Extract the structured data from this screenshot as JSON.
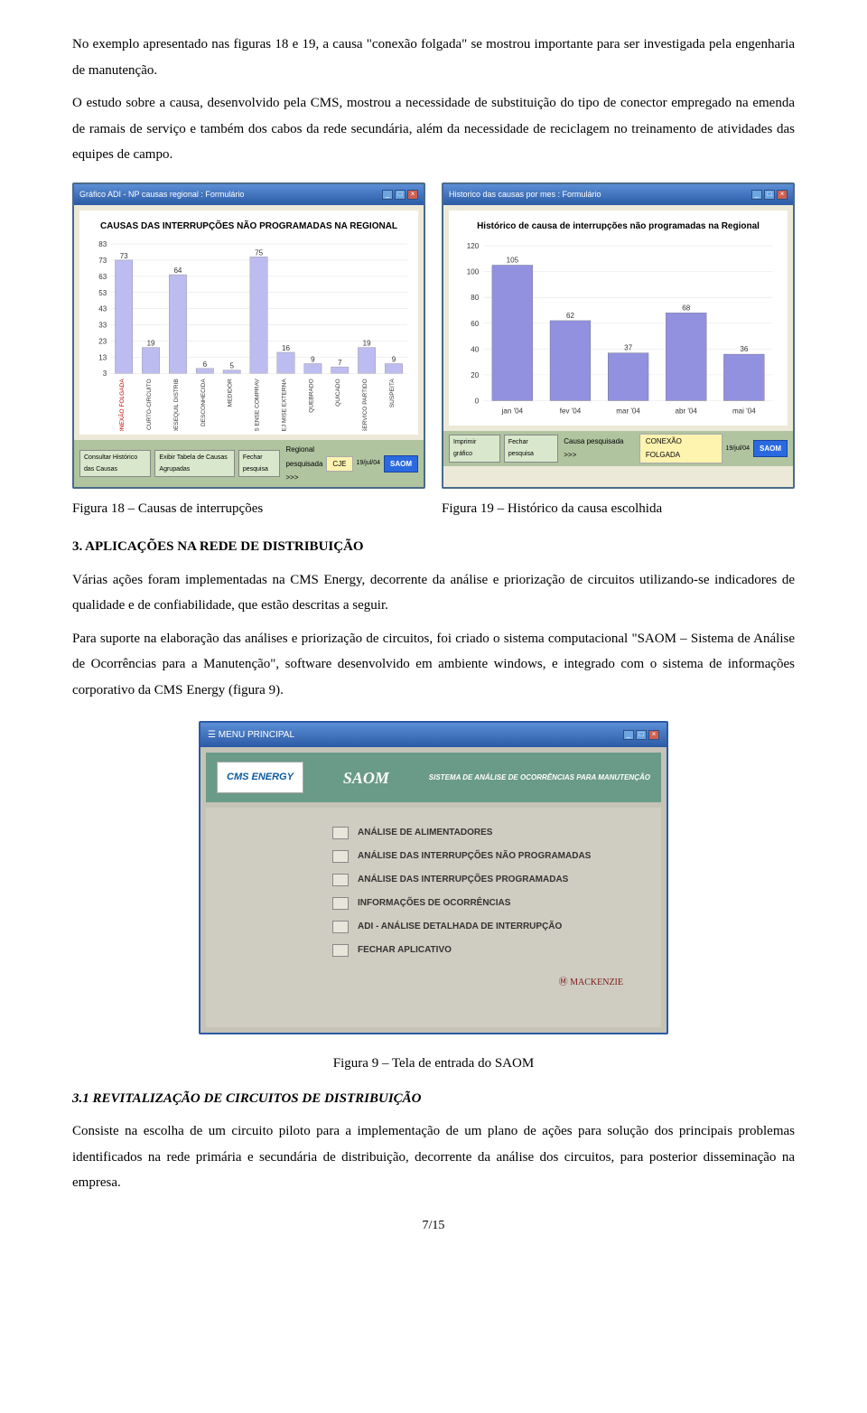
{
  "para1": "No exemplo apresentado nas figuras 18 e 19, a causa \"conexão folgada\" se mostrou importante para ser investigada pela engenharia de manutenção.",
  "para2": "O estudo sobre a causa, desenvolvido pela CMS, mostrou a necessidade de substituição do tipo de conector empregado na emenda de ramais de serviço e também dos cabos da rede secundária, além da necessidade de reciclagem no treinamento de atividades das equipes de campo.",
  "fig18": {
    "win_title": "Gráfico ADI - NP causas regional : Formulário",
    "chart_title": "CAUSAS DAS INTERRUPÇÕES NÃO PROGRAMADAS NA REGIONAL",
    "y_max": 83,
    "y_ticks": [
      83,
      73,
      63,
      53,
      43,
      33,
      23,
      13,
      3
    ],
    "categories": [
      "CONEXÃO FOLGADA",
      "CURTO-CIRCUITO",
      "DESEQUIL DISTRIB",
      "DESCONHECIDA",
      "MEDIDOR",
      "OUTROS ENSE COMPRAV",
      "PLANEJ MISE EXTERNA",
      "QUEBRADO",
      "QUICADO",
      "RPI SERVICO PARTIDO",
      "SUSPEITA"
    ],
    "values": [
      73,
      19,
      64,
      6,
      5,
      75,
      16,
      9,
      7,
      19,
      9
    ],
    "bar_color": "#bdbcf0",
    "label_color": "#c00000",
    "footer_labels": [
      "Consultar Histórico das Causas",
      "Exibir Tabela de Causas Agrupadas",
      "Fechar pesquisa"
    ],
    "footer_regional": "Regional pesquisada >>>",
    "cje": "CJE",
    "saom": "SAOM",
    "date": "19/jul/04"
  },
  "fig19": {
    "win_title": "Historico das causas por mes : Formulário",
    "chart_title": "Histórico de causa de interrupções não programadas na Regional",
    "y_max": 120,
    "y_ticks": [
      0,
      20,
      40,
      60,
      80,
      100,
      120
    ],
    "categories": [
      "jan '04",
      "fev '04",
      "mar '04",
      "abr '04",
      "mai '04"
    ],
    "values": [
      105,
      62,
      37,
      68,
      36
    ],
    "bar_color": "#9191e0",
    "footer_labels": [
      "Imprimir gráfico",
      "Fechar pesquisa"
    ],
    "footer_causa": "Causa pesquisada >>>",
    "conexao": "CONEXÃO FOLGADA",
    "saom": "SAOM",
    "date": "19/jul/04"
  },
  "cap18": "Figura 18 – Causas de interrupções",
  "cap19": "Figura 19 – Histórico da causa escolhida",
  "section3": "3.  APLICAÇÕES NA REDE DE DISTRIBUIÇÃO",
  "para3": "Várias ações foram implementadas na CMS Energy, decorrente da análise e priorização de circuitos utilizando-se indicadores de qualidade e de confiabilidade, que estão descritas a seguir.",
  "para4": "Para suporte na elaboração das análises e priorização de circuitos, foi criado o sistema computacional \"SAOM – Sistema de Análise de Ocorrências para a Manutenção\", software desenvolvido em ambiente windows, e integrado com o sistema de informações corporativo da CMS Energy (figura 9).",
  "saom_app": {
    "win_title": "MENU PRINCIPAL",
    "logo": "CMS ENERGY",
    "saom": "SAOM",
    "sys_desc": "SISTEMA DE ANÁLISE DE OCORRÊNCIAS PARA MANUTENÇÃO",
    "items": [
      "ANÁLISE DE ALIMENTADORES",
      "ANÁLISE DAS INTERRUPÇÕES NÃO PROGRAMADAS",
      "ANÁLISE DAS INTERRUPÇÕES PROGRAMADAS",
      "INFORMAÇÕES DE OCORRÊNCIAS",
      "ADI - ANÁLISE DETALHADA DE INTERRUPÇÃO",
      "FECHAR APLICATIVO"
    ],
    "mack": "Ⓜ MACKENZIE"
  },
  "fig9_cap": "Figura 9 – Tela de entrada do SAOM",
  "sub31": "3.1 REVITALIZAÇÃO DE CIRCUITOS DE DISTRIBUIÇÃO",
  "para5": "Consiste na escolha de um circuito piloto para a implementação de um plano de ações para solução dos principais problemas identificados na rede primária e secundária de distribuição, decorrente da análise dos circuitos, para posterior disseminação na empresa.",
  "page": "7/15"
}
